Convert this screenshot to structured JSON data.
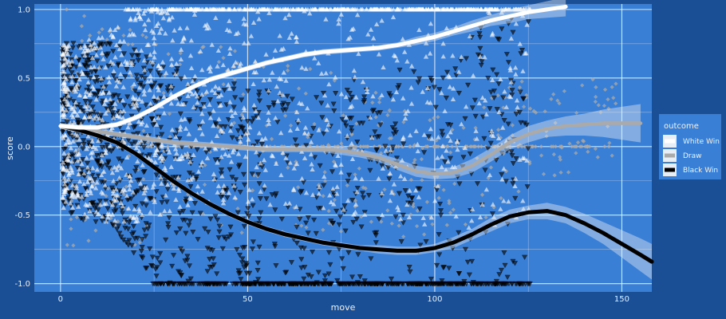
{
  "chart_data": {
    "type": "scatter",
    "xlabel": "move",
    "ylabel": "score",
    "xlim": [
      -7,
      158
    ],
    "ylim": [
      -1.06,
      1.04
    ],
    "x_ticks": [
      0,
      50,
      100,
      150
    ],
    "y_ticks": [
      -1.0,
      -0.5,
      0.0,
      0.5,
      1.0
    ],
    "x_tick_labels": [
      "0",
      "50",
      "100",
      "150"
    ],
    "y_tick_labels": [
      "-1.0",
      "-0.5",
      "0.0",
      "0.5",
      "1.0"
    ],
    "grid": true,
    "legend": {
      "title": "outcome",
      "position": "right",
      "entries": [
        "White Win",
        "Draw",
        "Black Win"
      ]
    },
    "colors": {
      "panel_background": "#3a7fd6",
      "page_background": "#1a4f96",
      "gridline": "#ffffff",
      "White Win": "#ffffff",
      "Draw": "#aaaaaa",
      "Black Win": "#000000"
    },
    "series": [
      {
        "name": "White Win",
        "marker": "triangle-up",
        "smooth_x": [
          0,
          5,
          10,
          15,
          20,
          25,
          30,
          35,
          40,
          45,
          50,
          55,
          60,
          65,
          70,
          75,
          80,
          85,
          90,
          95,
          100,
          105,
          110,
          115,
          120,
          125,
          130,
          135
        ],
        "smooth_y": [
          0.15,
          0.14,
          0.14,
          0.16,
          0.21,
          0.28,
          0.36,
          0.43,
          0.49,
          0.53,
          0.57,
          0.61,
          0.64,
          0.67,
          0.69,
          0.7,
          0.71,
          0.72,
          0.74,
          0.77,
          0.8,
          0.84,
          0.88,
          0.92,
          0.95,
          0.98,
          1.0,
          1.02
        ],
        "band_halfwidth": [
          0.02,
          0.02,
          0.02,
          0.02,
          0.02,
          0.02,
          0.02,
          0.02,
          0.02,
          0.02,
          0.02,
          0.02,
          0.02,
          0.02,
          0.02,
          0.02,
          0.02,
          0.02,
          0.02,
          0.03,
          0.03,
          0.03,
          0.04,
          0.04,
          0.05,
          0.05,
          0.06,
          0.07
        ]
      },
      {
        "name": "Draw",
        "marker": "diamond",
        "smooth_x": [
          0,
          5,
          10,
          15,
          20,
          25,
          30,
          35,
          40,
          45,
          50,
          55,
          60,
          65,
          70,
          75,
          80,
          85,
          90,
          95,
          100,
          105,
          110,
          115,
          120,
          125,
          130,
          135,
          140,
          145,
          150,
          155
        ],
        "smooth_y": [
          0.15,
          0.13,
          0.11,
          0.09,
          0.07,
          0.05,
          0.03,
          0.02,
          0.01,
          0.0,
          -0.01,
          -0.02,
          -0.02,
          -0.02,
          -0.02,
          -0.03,
          -0.05,
          -0.08,
          -0.13,
          -0.18,
          -0.2,
          -0.19,
          -0.14,
          -0.06,
          0.03,
          0.09,
          0.13,
          0.15,
          0.16,
          0.17,
          0.17,
          0.17
        ],
        "band_halfwidth": [
          0.02,
          0.02,
          0.02,
          0.02,
          0.02,
          0.02,
          0.02,
          0.02,
          0.02,
          0.02,
          0.02,
          0.02,
          0.02,
          0.02,
          0.02,
          0.03,
          0.03,
          0.03,
          0.04,
          0.04,
          0.04,
          0.04,
          0.05,
          0.05,
          0.05,
          0.06,
          0.06,
          0.07,
          0.08,
          0.1,
          0.12,
          0.14
        ]
      },
      {
        "name": "Black Win",
        "marker": "triangle-down",
        "smooth_x": [
          0,
          5,
          10,
          15,
          20,
          25,
          30,
          35,
          40,
          45,
          50,
          55,
          60,
          65,
          70,
          75,
          80,
          85,
          90,
          95,
          100,
          105,
          110,
          115,
          120,
          125,
          130,
          135,
          140,
          145,
          150,
          155,
          158
        ],
        "smooth_y": [
          0.15,
          0.12,
          0.08,
          0.03,
          -0.05,
          -0.15,
          -0.25,
          -0.34,
          -0.42,
          -0.49,
          -0.55,
          -0.6,
          -0.64,
          -0.67,
          -0.7,
          -0.72,
          -0.74,
          -0.75,
          -0.76,
          -0.76,
          -0.74,
          -0.7,
          -0.64,
          -0.57,
          -0.51,
          -0.48,
          -0.47,
          -0.5,
          -0.56,
          -0.63,
          -0.71,
          -0.79,
          -0.84
        ],
        "band_halfwidth": [
          0.02,
          0.02,
          0.02,
          0.02,
          0.02,
          0.02,
          0.02,
          0.02,
          0.02,
          0.02,
          0.02,
          0.02,
          0.02,
          0.02,
          0.02,
          0.02,
          0.02,
          0.03,
          0.03,
          0.03,
          0.03,
          0.04,
          0.04,
          0.05,
          0.05,
          0.05,
          0.06,
          0.06,
          0.07,
          0.08,
          0.1,
          0.12,
          0.13
        ]
      }
    ]
  }
}
